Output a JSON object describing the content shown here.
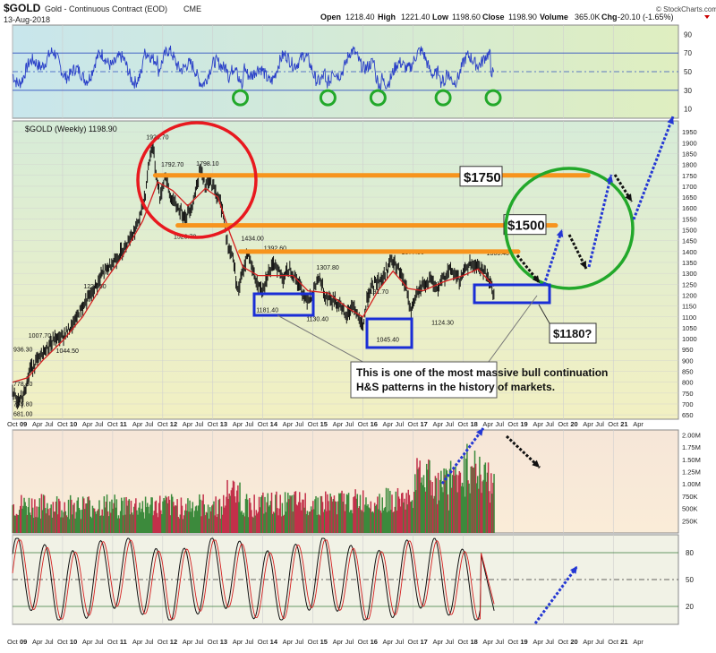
{
  "header": {
    "symbol": "$GOLD",
    "description": "Gold - Continuous Contract (EOD)",
    "exchange": "CME",
    "date": "13-Aug-2018",
    "open_label": "Open",
    "open": "1218.40",
    "high_label": "High",
    "high": "1221.40",
    "low_label": "Low",
    "low": "1198.60",
    "close_label": "Close",
    "close": "1198.90",
    "volume_label": "Volume",
    "volume": "365.0K",
    "chg_label": "Chg",
    "chg": "-20.10 (-1.65%)",
    "watermark": "© StockCharts.com"
  },
  "colors": {
    "rsi_bg": "#c8e6ec",
    "price_bg": "#f2f0c2",
    "volume_bg": "#faecd8",
    "stoch_bg": "#f1f2e6",
    "price_line": "#111111",
    "ma_line": "#d42020",
    "resistance": "#f7941d",
    "circle_red": "#e8191f",
    "circle_green": "#22a82a",
    "box_blue": "#1a2ed6",
    "arrow_blue": "#2437d4",
    "arrow_black": "#111111",
    "vol_up": "#3c8a3c",
    "vol_down": "#c2304a",
    "grid": "#cfcfcf"
  },
  "chart_data": [
    {
      "type": "line",
      "panel": "rsi",
      "y_ticks": [
        "90",
        "70",
        "50",
        "30",
        "10"
      ],
      "ylim": [
        0,
        100
      ],
      "levels": [
        70,
        50,
        30
      ],
      "oversold_dates": [
        "2013.55",
        "2015.3",
        "2016.3",
        "2017.6",
        "2018.6"
      ]
    },
    {
      "type": "line",
      "panel": "price",
      "title": "$GOLD (Weekly) 1198.90",
      "ylim": [
        630,
        2000
      ],
      "y_ticks": [
        650,
        700,
        750,
        800,
        850,
        900,
        950,
        1000,
        1050,
        1100,
        1150,
        1200,
        1250,
        1300,
        1350,
        1400,
        1450,
        1500,
        1550,
        1600,
        1650,
        1700,
        1750,
        1800,
        1850,
        1900,
        1950
      ],
      "x_range": [
        2009.0,
        2022.3
      ],
      "x_ticks": [
        {
          "label": "Oct",
          "t": 2009.0
        },
        {
          "label": "09",
          "t": 2009.25
        },
        {
          "label": "Apr",
          "t": 2009.5
        },
        {
          "label": "Jul",
          "t": 2009.75
        },
        {
          "label": "Oct",
          "t": 2010.0
        },
        {
          "label": "10",
          "t": 2010.25
        },
        {
          "label": "Apr",
          "t": 2010.5
        },
        {
          "label": "Jul",
          "t": 2010.75
        },
        {
          "label": "Oct",
          "t": 2011.0
        },
        {
          "label": "11",
          "t": 2011.25
        },
        {
          "label": "Apr",
          "t": 2011.5
        },
        {
          "label": "Jul",
          "t": 2011.75
        },
        {
          "label": "Oct",
          "t": 2012.0
        },
        {
          "label": "12",
          "t": 2012.25
        },
        {
          "label": "Apr",
          "t": 2012.5
        },
        {
          "label": "Jul",
          "t": 2012.75
        },
        {
          "label": "Oct",
          "t": 2013.0
        },
        {
          "label": "13",
          "t": 2013.25
        },
        {
          "label": "Apr",
          "t": 2013.5
        },
        {
          "label": "Jul",
          "t": 2013.75
        },
        {
          "label": "Oct",
          "t": 2014.0
        },
        {
          "label": "14",
          "t": 2014.25
        },
        {
          "label": "Apr",
          "t": 2014.5
        },
        {
          "label": "Jul",
          "t": 2014.75
        },
        {
          "label": "Oct",
          "t": 2015.0
        },
        {
          "label": "15",
          "t": 2015.25
        },
        {
          "label": "Apr",
          "t": 2015.5
        },
        {
          "label": "Jul",
          "t": 2015.75
        },
        {
          "label": "Oct",
          "t": 2016.0
        },
        {
          "label": "16",
          "t": 2016.25
        },
        {
          "label": "Apr",
          "t": 2016.5
        },
        {
          "label": "Jul",
          "t": 2016.75
        },
        {
          "label": "Oct",
          "t": 2017.0
        },
        {
          "label": "17",
          "t": 2017.25
        },
        {
          "label": "Apr",
          "t": 2017.5
        },
        {
          "label": "Jul",
          "t": 2017.75
        },
        {
          "label": "Oct",
          "t": 2018.0
        },
        {
          "label": "18",
          "t": 2018.25
        },
        {
          "label": "Apr",
          "t": 2018.5
        },
        {
          "label": "Jul",
          "t": 2018.75
        },
        {
          "label": "Oct",
          "t": 2019.0
        },
        {
          "label": "19",
          "t": 2019.25
        },
        {
          "label": "Apr",
          "t": 2019.5
        },
        {
          "label": "Jul",
          "t": 2019.75
        },
        {
          "label": "Oct",
          "t": 2020.0
        },
        {
          "label": "20",
          "t": 2020.25
        },
        {
          "label": "Apr",
          "t": 2020.5
        },
        {
          "label": "Jul",
          "t": 2020.75
        },
        {
          "label": "Oct",
          "t": 2021.0
        },
        {
          "label": "21",
          "t": 2021.25
        },
        {
          "label": "Apr",
          "t": 2021.5
        }
      ],
      "price_path": [
        [
          2009.0,
          760
        ],
        [
          2009.1,
          700
        ],
        [
          2009.2,
          730
        ],
        [
          2009.35,
          860
        ],
        [
          2009.5,
          900
        ],
        [
          2009.7,
          960
        ],
        [
          2009.85,
          1000
        ],
        [
          2010.0,
          1010
        ],
        [
          2010.2,
          1060
        ],
        [
          2010.35,
          1130
        ],
        [
          2010.5,
          1180
        ],
        [
          2010.65,
          1230
        ],
        [
          2010.8,
          1300
        ],
        [
          2011.0,
          1350
        ],
        [
          2011.15,
          1390
        ],
        [
          2011.3,
          1450
        ],
        [
          2011.45,
          1500
        ],
        [
          2011.55,
          1560
        ],
        [
          2011.65,
          1660
        ],
        [
          2011.72,
          1800
        ],
        [
          2011.8,
          1900
        ],
        [
          2011.85,
          1780
        ],
        [
          2011.95,
          1640
        ],
        [
          2012.05,
          1760
        ],
        [
          2012.15,
          1650
        ],
        [
          2012.3,
          1600
        ],
        [
          2012.45,
          1560
        ],
        [
          2012.6,
          1620
        ],
        [
          2012.75,
          1780
        ],
        [
          2012.85,
          1700
        ],
        [
          2012.95,
          1720
        ],
        [
          2013.05,
          1680
        ],
        [
          2013.2,
          1590
        ],
        [
          2013.3,
          1420
        ],
        [
          2013.4,
          1380
        ],
        [
          2013.5,
          1220
        ],
        [
          2013.6,
          1300
        ],
        [
          2013.7,
          1400
        ],
        [
          2013.8,
          1310
        ],
        [
          2013.9,
          1240
        ],
        [
          2014.0,
          1230
        ],
        [
          2014.1,
          1300
        ],
        [
          2014.25,
          1340
        ],
        [
          2014.4,
          1280
        ],
        [
          2014.55,
          1320
        ],
        [
          2014.7,
          1260
        ],
        [
          2014.85,
          1180
        ],
        [
          2015.0,
          1200
        ],
        [
          2015.1,
          1280
        ],
        [
          2015.25,
          1200
        ],
        [
          2015.4,
          1180
        ],
        [
          2015.55,
          1160
        ],
        [
          2015.65,
          1090
        ],
        [
          2015.8,
          1160
        ],
        [
          2015.95,
          1070
        ],
        [
          2016.0,
          1060
        ],
        [
          2016.1,
          1200
        ],
        [
          2016.25,
          1260
        ],
        [
          2016.4,
          1280
        ],
        [
          2016.55,
          1360
        ],
        [
          2016.7,
          1320
        ],
        [
          2016.85,
          1240
        ],
        [
          2016.95,
          1130
        ],
        [
          2017.05,
          1190
        ],
        [
          2017.2,
          1250
        ],
        [
          2017.35,
          1270
        ],
        [
          2017.5,
          1220
        ],
        [
          2017.6,
          1280
        ],
        [
          2017.75,
          1320
        ],
        [
          2017.85,
          1290
        ],
        [
          2017.95,
          1260
        ],
        [
          2018.05,
          1330
        ],
        [
          2018.15,
          1340
        ],
        [
          2018.3,
          1330
        ],
        [
          2018.45,
          1300
        ],
        [
          2018.55,
          1250
        ],
        [
          2018.62,
          1200
        ]
      ],
      "ma_path": [
        [
          2009.0,
          800
        ],
        [
          2009.3,
          820
        ],
        [
          2009.6,
          900
        ],
        [
          2010.0,
          990
        ],
        [
          2010.4,
          1100
        ],
        [
          2010.8,
          1250
        ],
        [
          2011.2,
          1380
        ],
        [
          2011.6,
          1540
        ],
        [
          2011.9,
          1720
        ],
        [
          2012.2,
          1680
        ],
        [
          2012.5,
          1610
        ],
        [
          2012.85,
          1690
        ],
        [
          2013.1,
          1650
        ],
        [
          2013.35,
          1480
        ],
        [
          2013.6,
          1330
        ],
        [
          2013.9,
          1290
        ],
        [
          2014.2,
          1290
        ],
        [
          2014.6,
          1290
        ],
        [
          2014.9,
          1220
        ],
        [
          2015.3,
          1210
        ],
        [
          2015.7,
          1140
        ],
        [
          2016.0,
          1100
        ],
        [
          2016.3,
          1220
        ],
        [
          2016.6,
          1310
        ],
        [
          2016.9,
          1230
        ],
        [
          2017.2,
          1220
        ],
        [
          2017.6,
          1260
        ],
        [
          2018.0,
          1290
        ],
        [
          2018.3,
          1320
        ],
        [
          2018.62,
          1240
        ]
      ],
      "price_labels": [
        {
          "text": "936.30",
          "t": 2009.0,
          "v": 940
        },
        {
          "text": "778.30",
          "t": 2009.0,
          "v": 782
        },
        {
          "text": "739.80",
          "t": 2009.0,
          "v": 690
        },
        {
          "text": "681.00",
          "t": 2009.0,
          "v": 645
        },
        {
          "text": "1007.70",
          "t": 2009.3,
          "v": 1005
        },
        {
          "text": "1044.50",
          "t": 2009.85,
          "v": 935
        },
        {
          "text": "1227.50",
          "t": 2010.4,
          "v": 1230
        },
        {
          "text": "1920.70",
          "t": 2011.65,
          "v": 1915
        },
        {
          "text": "1792.70",
          "t": 2011.95,
          "v": 1790
        },
        {
          "text": "1798.10",
          "t": 2012.65,
          "v": 1795
        },
        {
          "text": "1526.70",
          "t": 2012.2,
          "v": 1460
        },
        {
          "text": "1434.00",
          "t": 2013.55,
          "v": 1450
        },
        {
          "text": "1392.60",
          "t": 2014.0,
          "v": 1405
        },
        {
          "text": "1181.40",
          "t": 2013.85,
          "v": 1122
        },
        {
          "text": "1130.40",
          "t": 2014.85,
          "v": 1080
        },
        {
          "text": "1307.80",
          "t": 2015.05,
          "v": 1318
        },
        {
          "text": "1191.70",
          "t": 2016.05,
          "v": 1205
        },
        {
          "text": "1045.40",
          "t": 2016.25,
          "v": 985
        },
        {
          "text": "1377.50",
          "t": 2016.75,
          "v": 1388
        },
        {
          "text": "1124.30",
          "t": 2017.35,
          "v": 1065
        },
        {
          "text": "1366.40",
          "t": 2018.45,
          "v": 1382
        }
      ],
      "resistance_lines": [
        {
          "label": "$1750",
          "value": 1750,
          "t_start": 2011.85,
          "t_end": 2020.5
        },
        {
          "label": "$1500",
          "value": 1520,
          "t_start": 2012.3,
          "t_end": 2019.85
        },
        {
          "label": "",
          "value": 1400,
          "t_start": 2013.55,
          "t_end": 2019.1
        }
      ],
      "support_label": "$1180?",
      "annotation": "This is one of the most massive bull continuation H&S patterns in the history of markets."
    },
    {
      "type": "bar",
      "panel": "volume",
      "y_ticks": [
        "2.00M",
        "1.75M",
        "1.50M",
        "1.25M",
        "1.00M",
        "750K",
        "500K",
        "250K"
      ],
      "ylim": [
        0,
        2100000
      ]
    },
    {
      "type": "line",
      "panel": "stochastic",
      "y_ticks": [
        "80",
        "50",
        "20"
      ],
      "ylim": [
        0,
        100
      ],
      "levels": [
        80,
        50,
        20
      ]
    }
  ]
}
